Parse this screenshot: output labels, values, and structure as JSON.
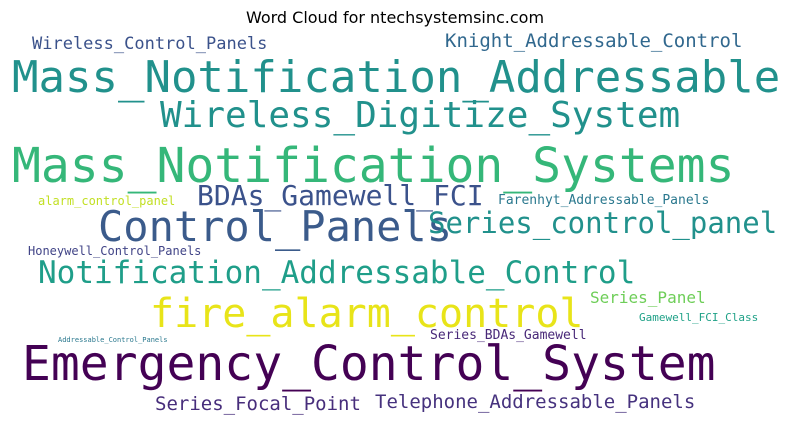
{
  "title": "Word Cloud for ntechsystemsinc.com",
  "words": [
    {
      "text": "Wireless_Control_Panels",
      "color": "#3b528b"
    },
    {
      "text": "Knight_Addressable_Control",
      "color": "#31688e"
    },
    {
      "text": "Mass_Notification_Addressable",
      "color": "#21918c"
    },
    {
      "text": "Wireless_Digitize_System",
      "color": "#21918c"
    },
    {
      "text": "Mass_Notification_Systems",
      "color": "#35b779"
    },
    {
      "text": "BDAs_Gamewell_FCI",
      "color": "#3b528b"
    },
    {
      "text": "alarm_control_panel",
      "color": "#c2df23"
    },
    {
      "text": "Farenhyt_Addressable_Panels",
      "color": "#2a788e"
    },
    {
      "text": "Control_Panels",
      "color": "#3b5b8b"
    },
    {
      "text": "Series_control_panel",
      "color": "#21918c"
    },
    {
      "text": "Honeywell_Control_Panels",
      "color": "#414487"
    },
    {
      "text": "Notification_Addressable_Control",
      "color": "#1f9e89"
    },
    {
      "text": "Series_Panel",
      "color": "#6ece58"
    },
    {
      "text": "fire_alarm_control",
      "color": "#e8e419"
    },
    {
      "text": "Gamewell_FCI_Class",
      "color": "#1fa187"
    },
    {
      "text": "Addressable_Control_Panels",
      "color": "#2a788e"
    },
    {
      "text": "Series_BDAs_Gamewell",
      "color": "#482878"
    },
    {
      "text": "Emergency_Control_System",
      "color": "#440154"
    },
    {
      "text": "Series_Focal_Point",
      "color": "#472d7b"
    },
    {
      "text": "Telephone_Addressable_Panels",
      "color": "#46327e"
    }
  ]
}
